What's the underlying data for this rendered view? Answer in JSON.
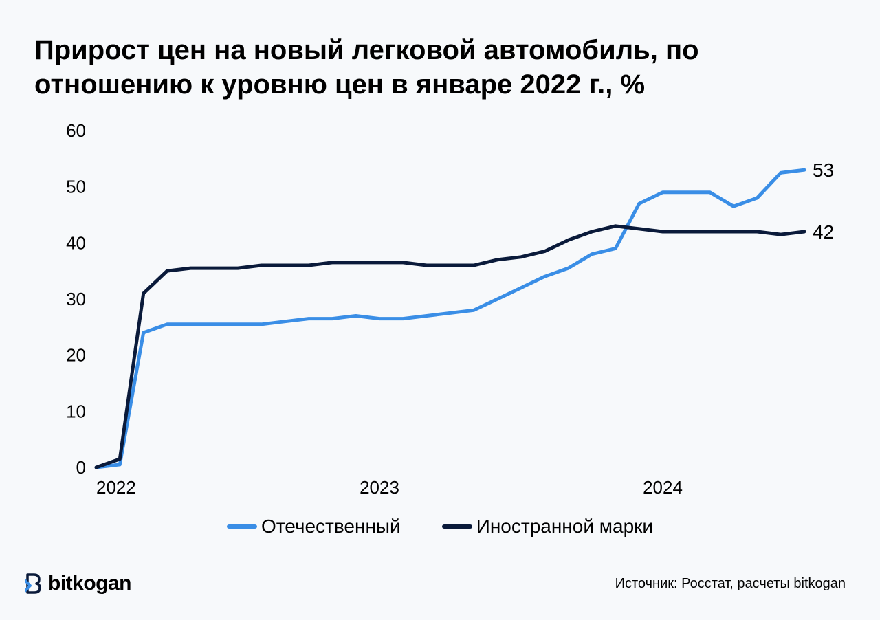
{
  "title": "Прирост цен на новый легковой автомобиль, по отношению к уровню цен в январе 2022 г., %",
  "chart": {
    "type": "line",
    "background_color": "#f7f9fb",
    "title_fontsize": 40,
    "title_fontweight": 800,
    "axis_fontsize": 26,
    "end_label_fontsize": 28,
    "line_width": 5,
    "ylim": [
      0,
      60
    ],
    "ytick_step": 10,
    "yticks": [
      0,
      10,
      20,
      30,
      40,
      50,
      60
    ],
    "x_range_months": 30,
    "xticks": [
      {
        "month_index": 0,
        "label": "2022"
      },
      {
        "month_index": 12,
        "label": "2023"
      },
      {
        "month_index": 24,
        "label": "2024"
      }
    ],
    "series": [
      {
        "key": "domestic",
        "label": "Отечественный",
        "color": "#3a8ee6",
        "end_label": "53",
        "values": [
          0,
          0.5,
          24,
          25.5,
          25.5,
          25.5,
          25.5,
          25.5,
          26,
          26.5,
          26.5,
          27,
          26.5,
          26.5,
          27,
          27.5,
          28,
          30,
          32,
          34,
          35.5,
          38,
          39,
          47,
          49,
          49,
          49,
          46.5,
          48,
          52.5,
          53
        ]
      },
      {
        "key": "foreign",
        "label": "Иностранной марки",
        "color": "#0a1a3a",
        "end_label": "42",
        "values": [
          0,
          1.5,
          31,
          35,
          35.5,
          35.5,
          35.5,
          36,
          36,
          36,
          36.5,
          36.5,
          36.5,
          36.5,
          36,
          36,
          36,
          37,
          37.5,
          38.5,
          40.5,
          42,
          43,
          42.5,
          42,
          42,
          42,
          42,
          42,
          41.5,
          42
        ]
      }
    ]
  },
  "legend": {
    "fontsize": 28,
    "swatch_width": 44,
    "swatch_height": 6
  },
  "brand": {
    "name": "bitkogan",
    "icon_color_primary": "#3a8ee6",
    "icon_color_secondary": "#0a1a3a"
  },
  "source": "Источник: Росстат, расчеты bitkogan"
}
